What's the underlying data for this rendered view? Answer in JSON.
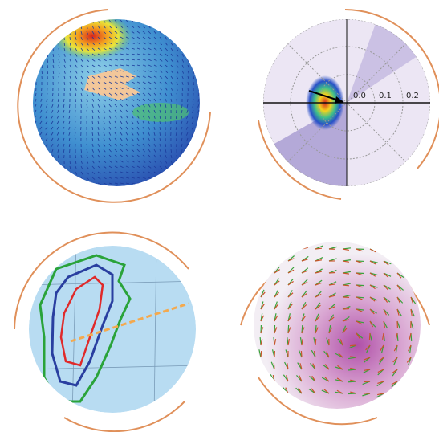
{
  "polar_plot": {
    "radial_labels": [
      "0.0",
      "0.1",
      "0.2"
    ]
  }
}
